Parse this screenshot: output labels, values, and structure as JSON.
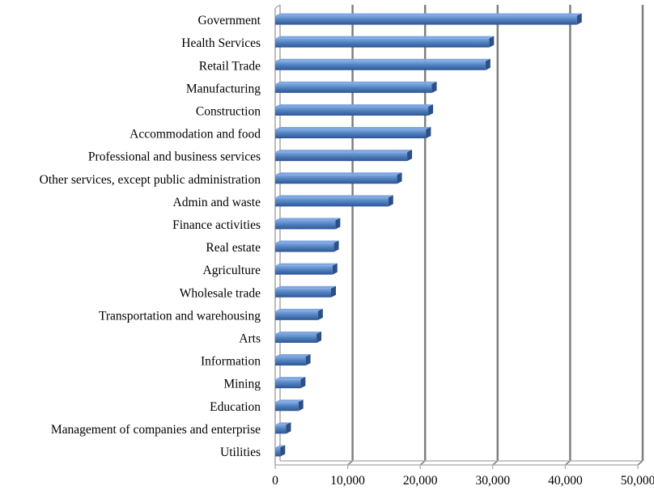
{
  "chart_data": {
    "type": "bar",
    "orientation": "horizontal",
    "title": "",
    "xlabel": "",
    "ylabel": "",
    "categories": [
      "Government",
      "Health Services",
      "Retail Trade",
      "Manufacturing",
      "Construction",
      "Accommodation and food",
      "Professional and business services",
      "Other services, except public administration",
      "Admin and waste",
      "Finance activities",
      "Real estate",
      "Agriculture",
      "Wholesale trade",
      "Transportation and warehousing",
      "Arts",
      "Information",
      "Mining",
      "Education",
      "Management of companies and enterprise",
      "Utilities"
    ],
    "values": [
      41600,
      29500,
      29000,
      21600,
      21100,
      20800,
      18200,
      16800,
      15600,
      8300,
      8100,
      7900,
      7700,
      5900,
      5700,
      4200,
      3500,
      3200,
      1500,
      700
    ],
    "xlim": [
      0,
      50000
    ],
    "xticks": [
      0,
      10000,
      20000,
      30000,
      40000,
      50000
    ],
    "xtick_labels": [
      "0",
      "10,000",
      "20,000",
      "30,000",
      "40,000",
      "50,000"
    ],
    "grid": "vertical major gridlines",
    "legend": "none",
    "colors": {
      "bar_top": "#7EA6E0",
      "bar_mid": "#4F81BD",
      "bar_bottom": "#2F5597",
      "bar_cap": "#2B4F86",
      "gridline": "#7F7F7F",
      "axis": "#A6A6A6"
    }
  }
}
